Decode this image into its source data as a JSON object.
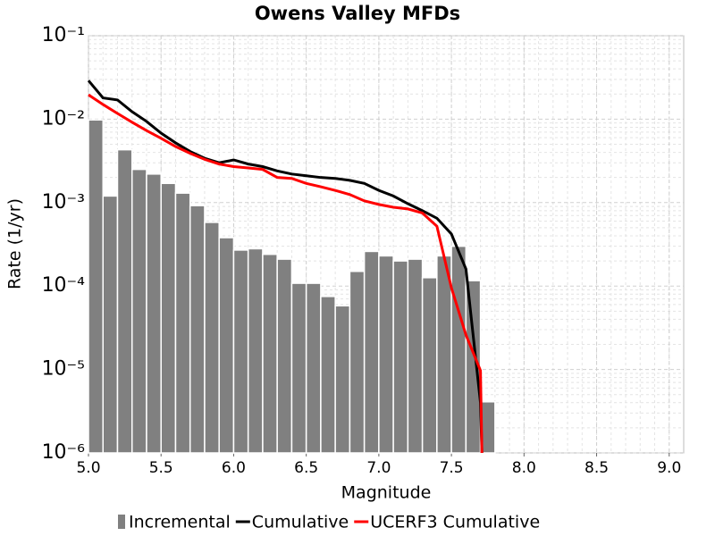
{
  "chart_data": {
    "type": "line",
    "title": "Owens Valley MFDs",
    "x_label": "Magnitude",
    "y_label": "Rate (1/yr)",
    "log_y": true,
    "grid": true,
    "legend": "bottom",
    "xlim": [
      5.0,
      9.1
    ],
    "xticks": [
      {
        "value": 5,
        "label": "5.0"
      },
      {
        "value": 5.5,
        "label": "5.5"
      },
      {
        "value": 6,
        "label": "6.0"
      },
      {
        "value": 6.5,
        "label": "6.5"
      },
      {
        "value": 7,
        "label": "7.0"
      },
      {
        "value": 7.5,
        "label": "7.5"
      },
      {
        "value": 8,
        "label": "8.0"
      },
      {
        "value": 8.5,
        "label": "8.5"
      },
      {
        "value": 9,
        "label": "9.0"
      }
    ],
    "ylim": [
      1e-06,
      0.1
    ],
    "yticks": [
      {
        "value": 1e-06,
        "label": "10⁻⁶"
      },
      {
        "value": 1e-05,
        "label": "10⁻⁵"
      },
      {
        "value": 0.0001,
        "label": "10⁻⁴"
      },
      {
        "value": 0.001,
        "label": "10⁻³"
      },
      {
        "value": 0.01,
        "label": "10⁻²"
      },
      {
        "value": 0.1,
        "label": "10⁻¹"
      }
    ],
    "series": [
      {
        "name": "Incremental",
        "type": "bar",
        "color": "#808080",
        "bins": [
          5.0,
          5.1,
          5.2,
          5.3,
          5.4,
          5.5,
          5.6,
          5.7,
          5.8,
          5.9,
          6.0,
          6.1,
          6.2,
          6.3,
          6.4,
          6.5,
          6.6,
          6.7,
          6.8,
          6.9,
          7.0,
          7.1,
          7.2,
          7.3,
          7.4,
          7.5,
          7.6,
          7.7,
          7.8
        ],
        "values": [
          0.0098,
          0.0012,
          0.0043,
          0.0025,
          0.0022,
          0.0017,
          0.0013,
          0.00092,
          0.00058,
          0.00038,
          0.00027,
          0.00028,
          0.00024,
          0.00021,
          0.000108,
          0.000108,
          7.5e-05,
          5.8e-05,
          0.00015,
          0.00026,
          0.00023,
          0.0002,
          0.00021,
          0.000126,
          0.00023,
          0.0003,
          0.000116,
          4.1e-06
        ]
      },
      {
        "name": "Cumulative",
        "type": "line",
        "color": "#000000",
        "x": [
          5.0,
          5.1,
          5.2,
          5.3,
          5.4,
          5.5,
          5.6,
          5.7,
          5.8,
          5.9,
          6.0,
          6.1,
          6.2,
          6.3,
          6.4,
          6.5,
          6.6,
          6.7,
          6.8,
          6.9,
          7.0,
          7.1,
          7.2,
          7.3,
          7.4,
          7.5,
          7.6,
          7.7,
          7.71
        ],
        "values": [
          0.029,
          0.018,
          0.017,
          0.0123,
          0.0094,
          0.0068,
          0.0052,
          0.0041,
          0.0034,
          0.003,
          0.00325,
          0.0029,
          0.0027,
          0.0024,
          0.0022,
          0.0021,
          0.002,
          0.00195,
          0.00185,
          0.0017,
          0.0014,
          0.0012,
          0.00097,
          0.0008,
          0.00065,
          0.00042,
          0.00016,
          4e-06,
          1e-06
        ]
      },
      {
        "name": "UCERF3 Cumulative",
        "type": "line",
        "color": "#ff0000",
        "x": [
          5.0,
          5.1,
          5.2,
          5.3,
          5.4,
          5.5,
          5.6,
          5.7,
          5.8,
          5.9,
          6.0,
          6.1,
          6.2,
          6.3,
          6.4,
          6.5,
          6.6,
          6.7,
          6.8,
          6.9,
          7.0,
          7.1,
          7.2,
          7.3,
          7.4,
          7.5,
          7.6,
          7.7,
          7.71
        ],
        "values": [
          0.0196,
          0.015,
          0.0117,
          0.0092,
          0.0073,
          0.0059,
          0.0047,
          0.0039,
          0.0033,
          0.0029,
          0.0027,
          0.0026,
          0.0025,
          0.002,
          0.00195,
          0.0017,
          0.00155,
          0.0014,
          0.00125,
          0.00105,
          0.00095,
          0.00088,
          0.00084,
          0.00075,
          0.00052,
          9.5e-05,
          2.6e-05,
          9.7e-06,
          1e-06
        ]
      }
    ]
  }
}
